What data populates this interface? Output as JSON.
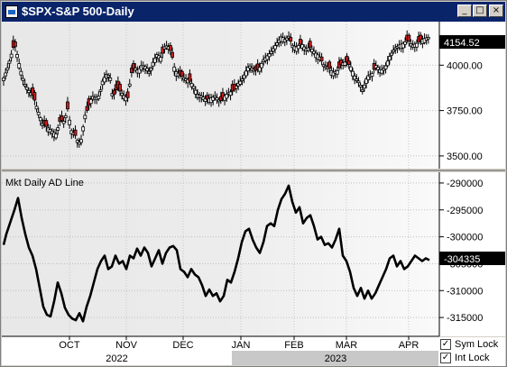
{
  "window": {
    "title": "$SPX-S&P 500-Daily",
    "buttons": {
      "minimize": "_",
      "maximize": "□",
      "close": "×"
    }
  },
  "toggles": {
    "sym_lock": {
      "label": "Sym Lock",
      "checked": true
    },
    "int_lock": {
      "label": "Int Lock",
      "checked": true
    }
  },
  "chart_data": [
    {
      "type": "candlestick",
      "title": "$SPX-S&P 500-Daily",
      "current_value_label": "4154.52",
      "ylim": [
        3430,
        4240
      ],
      "yticks": [
        "4000.00",
        "3750.00",
        "3500.00"
      ],
      "ytick_values": [
        4000,
        3750,
        3500
      ],
      "up_color": "#ffffff",
      "down_color": "#cc2020",
      "close_path": [
        [
          0,
          3930
        ],
        [
          4,
          3980
        ],
        [
          8,
          4050
        ],
        [
          12,
          4120
        ],
        [
          15,
          4060
        ],
        [
          18,
          3990
        ],
        [
          23,
          3900
        ],
        [
          28,
          3860
        ],
        [
          33,
          3830
        ],
        [
          38,
          3750
        ],
        [
          43,
          3680
        ],
        [
          48,
          3660
        ],
        [
          53,
          3640
        ],
        [
          58,
          3620
        ],
        [
          63,
          3700
        ],
        [
          67,
          3690
        ],
        [
          71,
          3760
        ],
        [
          75,
          3640
        ],
        [
          79,
          3620
        ],
        [
          83,
          3570
        ],
        [
          86,
          3590
        ],
        [
          90,
          3720
        ],
        [
          94,
          3770
        ],
        [
          98,
          3830
        ],
        [
          102,
          3820
        ],
        [
          106,
          3830
        ],
        [
          110,
          3920
        ],
        [
          114,
          3950
        ],
        [
          118,
          3940
        ],
        [
          121,
          3820
        ],
        [
          126,
          3880
        ],
        [
          130,
          3850
        ],
        [
          134,
          3830
        ],
        [
          138,
          3820
        ],
        [
          141,
          3950
        ],
        [
          145,
          3990
        ],
        [
          149,
          3970
        ],
        [
          153,
          4000
        ],
        [
          158,
          3990
        ],
        [
          162,
          3960
        ],
        [
          165,
          4010
        ],
        [
          170,
          4060
        ],
        [
          175,
          4040
        ],
        [
          178,
          4100
        ],
        [
          182,
          4110
        ],
        [
          186,
          4070
        ],
        [
          190,
          3970
        ],
        [
          195,
          3950
        ],
        [
          200,
          3930
        ],
        [
          205,
          3920
        ],
        [
          210,
          3890
        ],
        [
          215,
          3840
        ],
        [
          220,
          3830
        ],
        [
          225,
          3810
        ],
        [
          230,
          3820
        ],
        [
          235,
          3830
        ],
        [
          240,
          3800
        ],
        [
          245,
          3830
        ],
        [
          250,
          3850
        ],
        [
          255,
          3860
        ],
        [
          260,
          3900
        ],
        [
          264,
          3920
        ],
        [
          268,
          3960
        ],
        [
          272,
          4000
        ],
        [
          276,
          3980
        ],
        [
          280,
          3970
        ],
        [
          284,
          3990
        ],
        [
          288,
          4030
        ],
        [
          292,
          4050
        ],
        [
          296,
          4070
        ],
        [
          300,
          4100
        ],
        [
          304,
          4130
        ],
        [
          308,
          4160
        ],
        [
          312,
          4140
        ],
        [
          316,
          4160
        ],
        [
          320,
          4110
        ],
        [
          325,
          4100
        ],
        [
          330,
          4120
        ],
        [
          335,
          4090
        ],
        [
          340,
          4100
        ],
        [
          345,
          4070
        ],
        [
          350,
          4050
        ],
        [
          355,
          4000
        ],
        [
          360,
          3990
        ],
        [
          365,
          3960
        ],
        [
          370,
          3970
        ],
        [
          375,
          4010
        ],
        [
          380,
          4020
        ],
        [
          385,
          3990
        ],
        [
          390,
          3930
        ],
        [
          394,
          3910
        ],
        [
          398,
          3860
        ],
        [
          403,
          3940
        ],
        [
          408,
          3950
        ],
        [
          413,
          4000
        ],
        [
          418,
          3970
        ],
        [
          423,
          3990
        ],
        [
          428,
          4050
        ],
        [
          433,
          4090
        ],
        [
          438,
          4110
        ],
        [
          443,
          4120
        ],
        [
          448,
          4140
        ],
        [
          453,
          4110
        ],
        [
          458,
          4120
        ],
        [
          463,
          4140
        ],
        [
          468,
          4150
        ],
        [
          472,
          4154.52
        ]
      ],
      "down_candles": [
        12,
        33,
        46,
        63,
        71,
        80,
        92,
        95,
        124,
        128,
        137,
        143,
        176,
        186,
        197,
        206,
        226,
        242,
        255,
        281,
        318,
        329,
        340,
        352,
        361,
        373,
        382,
        410,
        448,
        461
      ]
    },
    {
      "type": "line",
      "title": "Mkt Daily AD Line",
      "current_value_label": "-304335",
      "ylim": [
        -318500,
        -288000
      ],
      "yticks": [
        "-290000",
        "-295000",
        "-300000",
        "-305000",
        "-310000",
        "-315000"
      ],
      "ytick_values": [
        -290000,
        -295000,
        -300000,
        -305000,
        -310000,
        -315000
      ],
      "xticks": [
        "OCT",
        "NOV",
        "DEC",
        "JAN",
        "FEB",
        "MAR",
        "APR"
      ],
      "xtick_positions": [
        73,
        136,
        199,
        263,
        322,
        380,
        449
      ],
      "years": [
        "2022",
        "2023"
      ],
      "year_split_at": 253,
      "line_color": "#000000",
      "points": [
        [
          0,
          -301500
        ],
        [
          3,
          -299500
        ],
        [
          6,
          -298000
        ],
        [
          9,
          -296500
        ],
        [
          12,
          -295000
        ],
        [
          16,
          -292800
        ],
        [
          20,
          -296500
        ],
        [
          24,
          -299500
        ],
        [
          28,
          -302000
        ],
        [
          32,
          -303500
        ],
        [
          36,
          -306000
        ],
        [
          40,
          -309500
        ],
        [
          44,
          -313000
        ],
        [
          48,
          -314500
        ],
        [
          52,
          -314800
        ],
        [
          56,
          -312000
        ],
        [
          60,
          -308500
        ],
        [
          64,
          -310500
        ],
        [
          68,
          -313200
        ],
        [
          72,
          -314500
        ],
        [
          76,
          -315200
        ],
        [
          80,
          -315500
        ],
        [
          84,
          -314200
        ],
        [
          88,
          -315700
        ],
        [
          92,
          -313000
        ],
        [
          96,
          -311000
        ],
        [
          100,
          -308500
        ],
        [
          104,
          -306000
        ],
        [
          108,
          -304500
        ],
        [
          112,
          -303500
        ],
        [
          116,
          -306000
        ],
        [
          120,
          -305500
        ],
        [
          124,
          -303500
        ],
        [
          128,
          -305000
        ],
        [
          132,
          -304500
        ],
        [
          136,
          -306000
        ],
        [
          140,
          -303500
        ],
        [
          144,
          -304000
        ],
        [
          148,
          -302200
        ],
        [
          152,
          -303500
        ],
        [
          156,
          -302000
        ],
        [
          160,
          -303000
        ],
        [
          164,
          -305500
        ],
        [
          168,
          -304000
        ],
        [
          172,
          -302500
        ],
        [
          176,
          -305000
        ],
        [
          180,
          -303000
        ],
        [
          184,
          -302000
        ],
        [
          188,
          -301700
        ],
        [
          192,
          -302500
        ],
        [
          196,
          -306000
        ],
        [
          200,
          -306500
        ],
        [
          204,
          -307500
        ],
        [
          208,
          -306000
        ],
        [
          212,
          -307000
        ],
        [
          216,
          -307500
        ],
        [
          220,
          -309000
        ],
        [
          224,
          -311000
        ],
        [
          228,
          -309800
        ],
        [
          232,
          -311000
        ],
        [
          236,
          -310500
        ],
        [
          240,
          -312000
        ],
        [
          244,
          -311000
        ],
        [
          248,
          -308000
        ],
        [
          252,
          -308500
        ],
        [
          256,
          -306500
        ],
        [
          260,
          -304000
        ],
        [
          264,
          -301000
        ],
        [
          268,
          -299000
        ],
        [
          272,
          -298500
        ],
        [
          276,
          -300500
        ],
        [
          280,
          -302000
        ],
        [
          284,
          -303000
        ],
        [
          288,
          -301000
        ],
        [
          292,
          -298000
        ],
        [
          296,
          -297500
        ],
        [
          300,
          -298000
        ],
        [
          304,
          -295000
        ],
        [
          308,
          -293000
        ],
        [
          312,
          -292000
        ],
        [
          316,
          -290500
        ],
        [
          320,
          -293500
        ],
        [
          324,
          -295500
        ],
        [
          328,
          -294500
        ],
        [
          332,
          -297500
        ],
        [
          336,
          -296500
        ],
        [
          340,
          -296000
        ],
        [
          344,
          -298000
        ],
        [
          348,
          -300500
        ],
        [
          352,
          -300000
        ],
        [
          356,
          -301500
        ],
        [
          360,
          -301200
        ],
        [
          364,
          -302000
        ],
        [
          368,
          -300500
        ],
        [
          372,
          -298500
        ],
        [
          376,
          -303500
        ],
        [
          380,
          -304500
        ],
        [
          384,
          -306500
        ],
        [
          388,
          -309500
        ],
        [
          392,
          -311000
        ],
        [
          396,
          -309500
        ],
        [
          400,
          -311500
        ],
        [
          404,
          -310000
        ],
        [
          408,
          -311500
        ],
        [
          412,
          -310500
        ],
        [
          416,
          -309000
        ],
        [
          420,
          -307500
        ],
        [
          424,
          -306000
        ],
        [
          428,
          -304000
        ],
        [
          432,
          -303500
        ],
        [
          436,
          -305500
        ],
        [
          440,
          -304500
        ],
        [
          444,
          -306000
        ],
        [
          448,
          -305500
        ],
        [
          452,
          -304500
        ],
        [
          456,
          -303500
        ],
        [
          460,
          -304000
        ],
        [
          464,
          -304500
        ],
        [
          468,
          -304000
        ],
        [
          472,
          -304335
        ]
      ]
    }
  ]
}
